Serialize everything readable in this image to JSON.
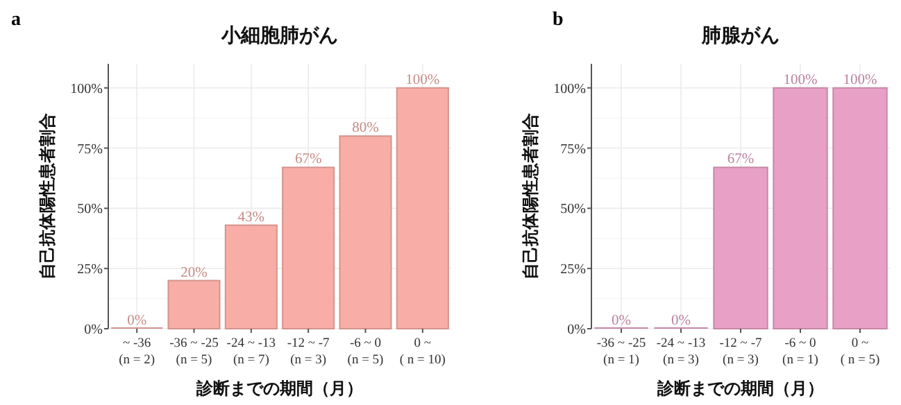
{
  "chart_data": [
    {
      "type": "bar",
      "title": "小細胞肺がん",
      "xlabel": "診断までの期間（月）",
      "ylabel": "自己抗体陽性患者割合",
      "annotations": [
        "a"
      ],
      "categories": [
        "~ -36\n(n = 2)",
        "-36 ~ -25\n(n = 5)",
        "-24 ~ -13\n(n = 7)",
        "-12 ~ -7\n(n = 3)",
        "-6 ~ 0\n(n = 5)",
        "0 ~\n( n = 10)"
      ],
      "series": [
        {
          "color": "#f8aea6",
          "values": [
            0,
            20,
            43,
            67,
            80,
            100
          ],
          "value_labels": [
            "0%",
            "20%",
            "43%",
            "67%",
            "80%",
            "100%"
          ]
        }
      ],
      "ylim": [
        0,
        110
      ],
      "yticks": [
        {
          "value": 0,
          "label": "0%"
        },
        {
          "value": 25,
          "label": "25%"
        },
        {
          "value": 50,
          "label": "50%"
        },
        {
          "value": 75,
          "label": "75%"
        },
        {
          "value": 100,
          "label": "100%"
        }
      ],
      "grid": true
    },
    {
      "type": "bar",
      "title": "肺腺がん",
      "xlabel": "診断までの期間（月）",
      "ylabel": "自己抗体陽性患者割合",
      "annotations": [
        "b"
      ],
      "categories": [
        "-36 ~ -25\n(n = 1)",
        "-24 ~ -13\n(n = 3)",
        "-12 ~ -7\n(n = 3)",
        "-6 ~ 0\n(n = 1)",
        "0 ~\n( n = 5)"
      ],
      "series": [
        {
          "color": "#e8a0c6",
          "values": [
            0,
            0,
            67,
            100,
            100
          ],
          "value_labels": [
            "0%",
            "0%",
            "67%",
            "100%",
            "100%"
          ]
        }
      ],
      "ylim": [
        0,
        110
      ],
      "yticks": [
        {
          "value": 0,
          "label": "0%"
        },
        {
          "value": 25,
          "label": "25%"
        },
        {
          "value": 50,
          "label": "50%"
        },
        {
          "value": 75,
          "label": "75%"
        },
        {
          "value": 100,
          "label": "100%"
        }
      ],
      "grid": true
    }
  ]
}
